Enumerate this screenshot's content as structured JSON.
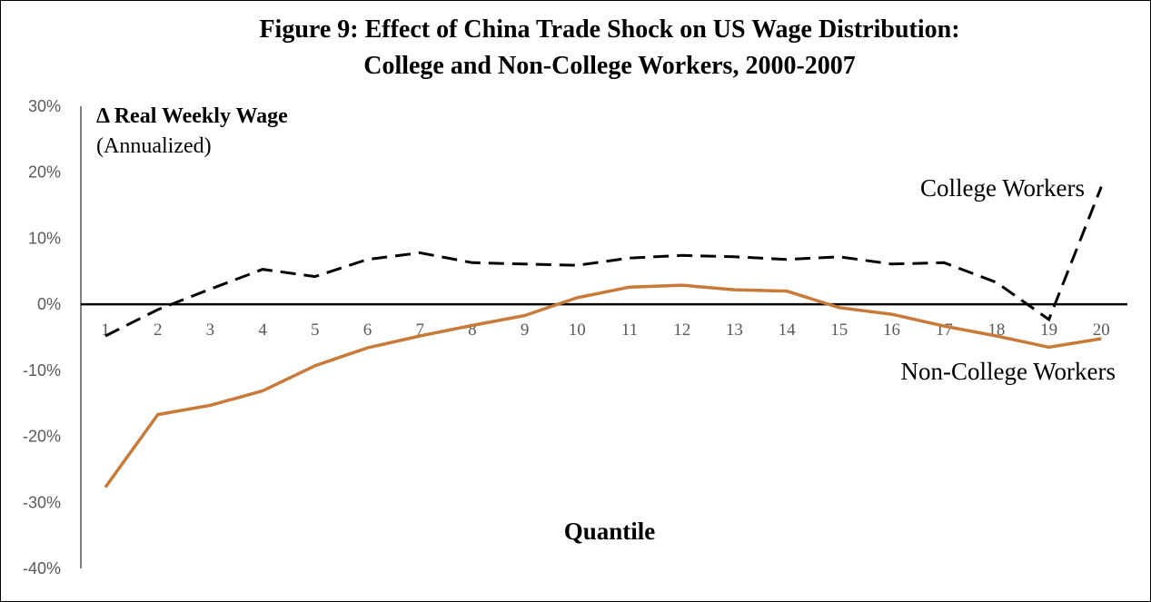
{
  "chart_data": {
    "type": "line",
    "title_line1": "Figure 9: Effect of China Trade Shock on US Wage Distribution:",
    "title_line2": "College and Non-College Workers, 2000-2007",
    "ylabel": "Δ Real Weekly Wage",
    "ylabel_sub": "(Annualized)",
    "xlabel": "Quantile",
    "ylim": [
      -40,
      30
    ],
    "yticks": [
      30,
      20,
      10,
      0,
      -10,
      -20,
      -30,
      -40
    ],
    "ytick_labels": [
      "30%",
      "20%",
      "10%",
      "0%",
      "-10%",
      "-20%",
      "-30%",
      "-40%"
    ],
    "categories": [
      "1",
      "2",
      "3",
      "4",
      "5",
      "6",
      "7",
      "8",
      "9",
      "10",
      "11",
      "12",
      "13",
      "14",
      "15",
      "16",
      "17",
      "18",
      "19",
      "20"
    ],
    "grid": false,
    "series": [
      {
        "name": "College Workers",
        "color": "#000000",
        "style": "dashed",
        "values": [
          -4.8,
          -0.8,
          2.3,
          5.3,
          4.2,
          6.8,
          7.8,
          6.3,
          6.1,
          5.9,
          7.0,
          7.4,
          7.2,
          6.8,
          7.2,
          6.1,
          6.3,
          3.3,
          -2.3,
          17.8
        ]
      },
      {
        "name": "Non-College Workers",
        "color": "#C87A3A",
        "style": "solid",
        "values": [
          -27.7,
          -16.7,
          -15.3,
          -13.1,
          -9.3,
          -6.6,
          -4.8,
          -3.2,
          -1.7,
          1.0,
          2.6,
          2.9,
          2.2,
          2.0,
          -0.5,
          -1.5,
          -3.3,
          -4.8,
          -6.5,
          -5.2
        ]
      }
    ]
  }
}
